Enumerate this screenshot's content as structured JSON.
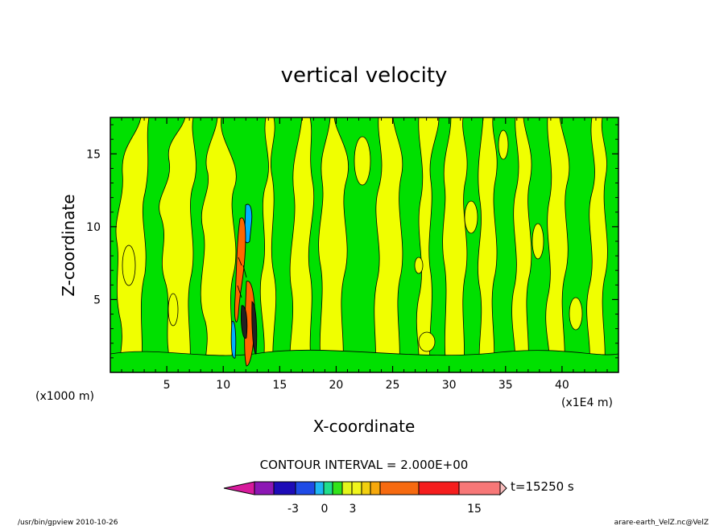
{
  "chart_data": {
    "type": "heatmap",
    "title": "vertical velocity",
    "xlabel": "X-coordinate",
    "ylabel": "Z-coordinate",
    "x_unit_left": "(x1000 m)",
    "x_unit_right": "(x1E4 m)",
    "xlim": [
      0,
      45
    ],
    "ylim": [
      0,
      17.5
    ],
    "x_ticks": [
      "5",
      "10",
      "15",
      "20",
      "25",
      "30",
      "35",
      "40"
    ],
    "x_tick_values": [
      5,
      10,
      15,
      20,
      25,
      30,
      35,
      40
    ],
    "y_ticks": [
      "5",
      "10",
      "15"
    ],
    "y_tick_values": [
      5,
      10,
      15
    ],
    "contour_interval_text": "CONTOUR INTERVAL = 2.000E+00",
    "time_label": "t=15250 s",
    "colorbar": {
      "labels": [
        "-3",
        "0",
        "3",
        "15"
      ],
      "label_values": [
        -3,
        0,
        3,
        15
      ],
      "levels": [
        -9,
        -7,
        -5,
        -3,
        -2,
        -1,
        0,
        1,
        2,
        3,
        5,
        9,
        12,
        15
      ],
      "colors": [
        "#d71a9c",
        "#8c17b4",
        "#1d0bb7",
        "#1f4be6",
        "#1fb7f4",
        "#1fde8c",
        "#32e31a",
        "#e3f51a",
        "#f0f51c",
        "#f2cf0f",
        "#f6a80c",
        "#f66a10",
        "#f51d1d",
        "#f77777",
        "#f9bebe"
      ]
    },
    "field_description_colors": {
      "positive_small": "#f0ff00",
      "negative_small": "#00e000",
      "updraft_core": "#ff6600",
      "downdraft_core": "#00b0ff"
    }
  },
  "footer": {
    "left": "/usr/bin/gpview  2010-10-26",
    "right": "arare-earth_VelZ.nc@VelZ"
  }
}
